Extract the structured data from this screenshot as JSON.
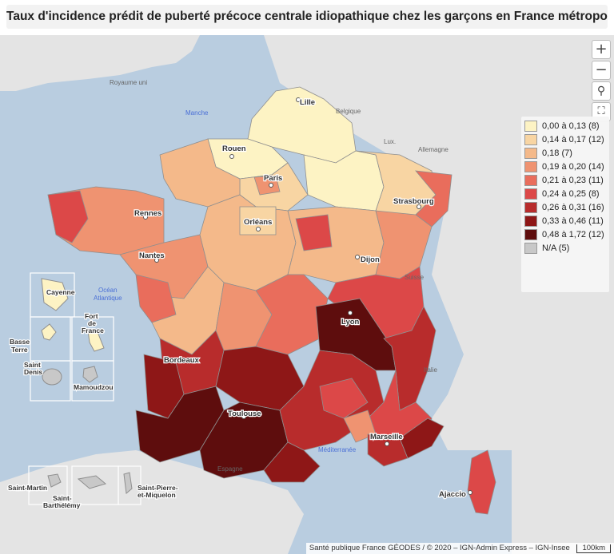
{
  "title": "Taux d'incidence prédit de puberté précoce centrale idiopathique chez les garçons en France métropolitaine",
  "controls": {
    "zoom_in": "+",
    "zoom_out": "−",
    "search": "⚲",
    "fullscreen": "⛶"
  },
  "legend": [
    {
      "label": "0,00 à 0,13 (8)",
      "color": "#fdf3c4"
    },
    {
      "label": "0,14 à 0,17 (12)",
      "color": "#f8d5a3"
    },
    {
      "label": "0,18 (7)",
      "color": "#f4b98a"
    },
    {
      "label": "0,19 à 0,20 (14)",
      "color": "#ef9371"
    },
    {
      "label": "0,21 à 0,23 (11)",
      "color": "#e96d5c"
    },
    {
      "label": "0,24 à 0,25 (8)",
      "color": "#dc4848"
    },
    {
      "label": "0,26 à 0,31 (16)",
      "color": "#b82c2c"
    },
    {
      "label": "0,33 à 0,46 (11)",
      "color": "#8e1717"
    },
    {
      "label": "0,48 à 1,72 (12)",
      "color": "#5e0d0d"
    },
    {
      "label": "N/A (5)",
      "color": "#c8c8c8"
    }
  ],
  "background_labels": {
    "royaume_uni": "Royaume uni",
    "manche": "Manche",
    "belgique": "Belgique",
    "lux": "Lux.",
    "allemagne": "Allemagne",
    "suisse": "Suisse",
    "italie": "Italie",
    "espagne": "Espagne",
    "mediterranee": "Méditerranée",
    "ocean": "Océan",
    "atlantique": "Atlantique"
  },
  "cities": {
    "lille": "Lille",
    "rouen": "Rouen",
    "paris": "Paris",
    "strasbourg": "Strasbourg",
    "rennes": "Rennes",
    "orleans": "Orléans",
    "nantes": "Nantes",
    "dijon": "Dijon",
    "lyon": "Lyon",
    "bordeaux": "Bordeaux",
    "toulouse": "Toulouse",
    "marseille": "Marseille",
    "ajaccio": "Ajaccio"
  },
  "overseas": {
    "cayenne": "Cayenne",
    "fort_de_france_1": "Fort",
    "fort_de_france_2": "de",
    "fort_de_france_3": "France",
    "basse_terre_1": "Basse",
    "basse_terre_2": "Terre",
    "saint_denis_1": "Saint",
    "saint_denis_2": "Denis",
    "mamoudzou": "Mamoudzou",
    "saint_martin": "Saint-Martin",
    "saint_barthelemy_1": "Saint-",
    "saint_barthelemy_2": "Barthélémy",
    "spm_1": "Saint-Pierre-",
    "spm_2": "et-Miquelon"
  },
  "attribution": "Santé publique France GÉODES / © 2020 – IGN-Admin Express – IGN-Insee",
  "scale": "100km"
}
